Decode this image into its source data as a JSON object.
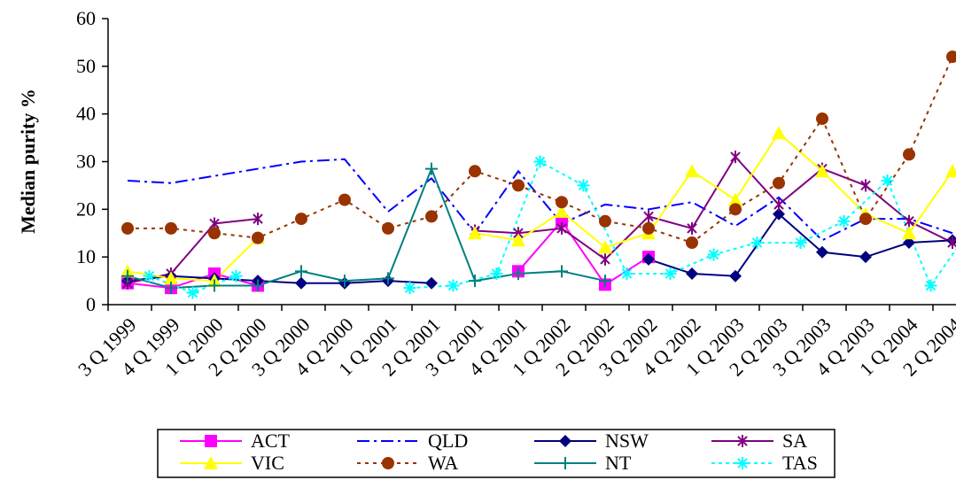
{
  "chart_data": {
    "type": "line",
    "ylabel": "Median purity %",
    "xlabel": "",
    "ylim": [
      0,
      60
    ],
    "yticks": [
      0,
      10,
      20,
      30,
      40,
      50,
      60
    ],
    "grid": false,
    "legend_position": "bottom",
    "categories": [
      "3 Q 1999",
      "4 Q 1999",
      "1 Q 2000",
      "2 Q 2000",
      "3 Q 2000",
      "4 Q 2000",
      "1 Q 2001",
      "2 Q 2001",
      "3 Q 2001",
      "4 Q 2001",
      "1 Q 2002",
      "2 Q 2002",
      "3 Q 2002",
      "4 Q 2002",
      "1 Q 2003",
      "2 Q 2003",
      "3 Q 2003",
      "4 Q 2003",
      "1 Q 2004",
      "2 Q 2004"
    ],
    "x": [
      0,
      0.5,
      1,
      1.5,
      2,
      2.5,
      3,
      3.5,
      4,
      4.5,
      5,
      5.5,
      6,
      6.5,
      7,
      7.5,
      8,
      8.5,
      9,
      9.5,
      10,
      10.5,
      11,
      11.5,
      12,
      12.5,
      13,
      13.5,
      14,
      14.5,
      15,
      15.5,
      16,
      16.5,
      17,
      17.5,
      18,
      18.5,
      19,
      19.5
    ],
    "series": [
      {
        "name": "ACT",
        "color": "#ff00ff",
        "dash": "",
        "marker": "square",
        "values": [
          4.5,
          null,
          3.5,
          null,
          6.5,
          null,
          4,
          null,
          null,
          null,
          null,
          null,
          null,
          null,
          null,
          null,
          null,
          null,
          7,
          null,
          17.5,
          null,
          4.2,
          null,
          10,
          null,
          null,
          null,
          null,
          null,
          null,
          null,
          null,
          null,
          null,
          null,
          null,
          null,
          null,
          null
        ]
      },
      {
        "name": "QLD",
        "color": "#0000ff",
        "dash": "14,5,3,5",
        "marker": "none",
        "values": [
          26,
          null,
          25.5,
          null,
          27,
          null,
          28.5,
          null,
          30,
          null,
          30.5,
          null,
          19.5,
          null,
          26.5,
          null,
          15,
          null,
          28,
          null,
          17,
          null,
          21,
          null,
          20,
          null,
          21.5,
          null,
          16.5,
          null,
          22.5,
          null,
          13.5,
          null,
          18,
          null,
          18,
          null,
          15,
          null
        ]
      },
      {
        "name": "NSW",
        "color": "#000080",
        "dash": "",
        "marker": "diamond",
        "values": [
          5,
          null,
          6,
          null,
          5.5,
          null,
          5,
          null,
          4.5,
          null,
          4.5,
          null,
          5,
          null,
          4.5,
          null,
          null,
          null,
          null,
          null,
          null,
          null,
          null,
          null,
          9.5,
          null,
          6.5,
          null,
          6,
          null,
          19,
          null,
          11,
          null,
          10,
          null,
          13,
          null,
          13.5,
          null
        ]
      },
      {
        "name": "SA",
        "color": "#800080",
        "dash": "",
        "marker": "star",
        "values": [
          4.5,
          null,
          6.5,
          null,
          17,
          null,
          18,
          null,
          null,
          null,
          null,
          null,
          null,
          null,
          null,
          null,
          15.5,
          null,
          15,
          null,
          16,
          null,
          9.5,
          null,
          18.5,
          null,
          16,
          null,
          31,
          null,
          21,
          null,
          28.5,
          null,
          25,
          null,
          17.5,
          null,
          13,
          null
        ]
      },
      {
        "name": "VIC",
        "color": "#ffff00",
        "dash": "",
        "marker": "triangle",
        "values": [
          7,
          null,
          5.5,
          null,
          5,
          null,
          14,
          null,
          null,
          null,
          null,
          null,
          null,
          null,
          null,
          null,
          15,
          null,
          13.5,
          null,
          19.5,
          null,
          12,
          null,
          15,
          null,
          28,
          null,
          22,
          null,
          36,
          null,
          28,
          null,
          19,
          null,
          15,
          null,
          28,
          null
        ]
      },
      {
        "name": "WA",
        "color": "#993300",
        "dash": "4,5",
        "marker": "circle",
        "values": [
          16,
          null,
          16,
          null,
          15,
          null,
          14,
          null,
          18,
          null,
          22,
          null,
          16,
          null,
          18.5,
          null,
          28,
          null,
          25,
          null,
          21.5,
          null,
          17.5,
          null,
          16,
          null,
          13,
          null,
          20,
          null,
          25.5,
          null,
          39,
          null,
          18,
          null,
          31.5,
          null,
          52,
          null
        ]
      },
      {
        "name": "NT",
        "color": "#008080",
        "dash": "",
        "marker": "plus",
        "values": [
          6,
          null,
          3.5,
          null,
          4,
          null,
          4,
          null,
          7,
          null,
          5,
          null,
          5.5,
          null,
          28.5,
          null,
          5,
          null,
          6.5,
          null,
          7,
          null,
          5,
          null,
          null,
          null,
          null,
          null,
          null,
          null,
          null,
          null,
          null,
          null,
          null,
          null,
          null,
          null,
          null,
          null
        ]
      },
      {
        "name": "TAS",
        "color": "#00ffff",
        "dash": "4,4",
        "marker": "asterisk",
        "values": [
          null,
          6,
          null,
          2.5,
          null,
          6,
          null,
          null,
          null,
          null,
          null,
          null,
          null,
          3.5,
          null,
          4,
          null,
          6.5,
          null,
          30,
          null,
          25,
          null,
          6.5,
          null,
          6.5,
          null,
          10.5,
          null,
          13,
          null,
          13,
          null,
          17.5,
          null,
          26,
          null,
          4,
          null,
          17
        ]
      }
    ]
  }
}
